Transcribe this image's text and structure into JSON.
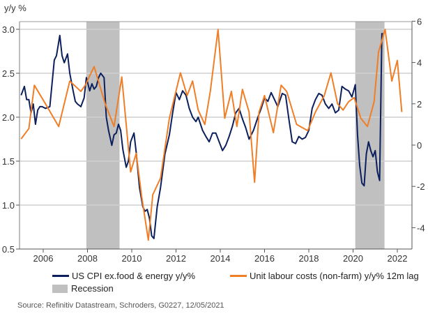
{
  "chart_data": {
    "type": "line",
    "title": "",
    "left_axis_label": "y/y %",
    "xlabel": "",
    "x_range": [
      2005.0,
      2022.35
    ],
    "x_ticks": [
      2006,
      2008,
      2010,
      2012,
      2014,
      2016,
      2018,
      2020,
      2022
    ],
    "x_tick_labels": [
      "2006",
      "2008",
      "2010",
      "2012",
      "2014",
      "2016",
      "2018",
      "2020",
      "2022"
    ],
    "left_ylim": [
      0.5,
      3.1
    ],
    "left_ticks": [
      0.5,
      1.0,
      1.5,
      2.0,
      2.5,
      3.0
    ],
    "left_tick_labels": [
      "0.5",
      "1.0",
      "1.5",
      "2.0",
      "2.5",
      "3.0"
    ],
    "right_ylim": [
      -5,
      6
    ],
    "right_ticks": [
      -4,
      -2,
      0,
      2,
      4,
      6
    ],
    "right_tick_labels": [
      "-4",
      "-2",
      "0",
      "2",
      "4",
      "6"
    ],
    "grid": "horizontal",
    "legend_position": "bottom",
    "recessions": [
      {
        "start": 2007.95,
        "end": 2009.45
      },
      {
        "start": 2020.1,
        "end": 2021.42
      }
    ],
    "series": [
      {
        "name": "US CPI ex.food & energy y/y%",
        "axis": "left",
        "color": "#0b1f5c",
        "x": [
          2005.0,
          2005.15,
          2005.25,
          2005.35,
          2005.45,
          2005.55,
          2005.65,
          2005.75,
          2005.85,
          2005.95,
          2006.1,
          2006.3,
          2006.5,
          2006.6,
          2006.75,
          2006.85,
          2006.95,
          2007.1,
          2007.2,
          2007.35,
          2007.45,
          2007.55,
          2007.7,
          2007.85,
          2007.95,
          2008.1,
          2008.2,
          2008.3,
          2008.4,
          2008.5,
          2008.6,
          2008.75,
          2008.85,
          2008.95,
          2009.1,
          2009.2,
          2009.3,
          2009.4,
          2009.5,
          2009.6,
          2009.75,
          2009.85,
          2009.95,
          2010.1,
          2010.2,
          2010.35,
          2010.5,
          2010.6,
          2010.7,
          2010.8,
          2010.9,
          2011.0,
          2011.15,
          2011.3,
          2011.5,
          2011.7,
          2011.85,
          2012.0,
          2012.15,
          2012.3,
          2012.45,
          2012.6,
          2012.75,
          2012.9,
          2013.0,
          2013.2,
          2013.35,
          2013.5,
          2013.65,
          2013.8,
          2013.95,
          2014.1,
          2014.25,
          2014.4,
          2014.55,
          2014.7,
          2014.85,
          2015.0,
          2015.15,
          2015.3,
          2015.5,
          2015.7,
          2015.85,
          2016.0,
          2016.15,
          2016.3,
          2016.45,
          2016.6,
          2016.8,
          2016.95,
          2017.1,
          2017.25,
          2017.4,
          2017.55,
          2017.7,
          2017.85,
          2018.0,
          2018.15,
          2018.3,
          2018.45,
          2018.6,
          2018.75,
          2018.9,
          2019.05,
          2019.2,
          2019.35,
          2019.5,
          2019.65,
          2019.8,
          2019.95,
          2020.1,
          2020.2,
          2020.3,
          2020.4,
          2020.5,
          2020.6,
          2020.7,
          2020.8,
          2020.9,
          2021.0,
          2021.1,
          2021.2,
          2021.3,
          2021.35
        ],
        "values": [
          2.25,
          2.35,
          2.2,
          2.2,
          2.05,
          2.15,
          1.92,
          2.08,
          2.12,
          2.12,
          2.1,
          2.12,
          2.65,
          2.7,
          2.93,
          2.7,
          2.62,
          2.72,
          2.5,
          2.3,
          2.18,
          2.15,
          2.12,
          2.22,
          2.45,
          2.3,
          2.38,
          2.32,
          2.35,
          2.45,
          2.5,
          2.45,
          2.0,
          1.85,
          1.68,
          1.8,
          1.82,
          1.92,
          1.85,
          1.63,
          1.43,
          1.5,
          1.72,
          1.82,
          1.6,
          1.2,
          0.98,
          0.93,
          0.95,
          0.85,
          0.65,
          0.62,
          0.98,
          1.2,
          1.58,
          1.8,
          2.05,
          2.28,
          2.2,
          2.3,
          2.25,
          2.1,
          2.0,
          1.95,
          2.0,
          1.85,
          1.78,
          1.72,
          1.82,
          1.82,
          1.72,
          1.62,
          1.68,
          1.78,
          1.9,
          2.05,
          2.1,
          1.98,
          1.88,
          1.75,
          1.85,
          2.0,
          2.1,
          2.22,
          2.18,
          2.28,
          2.2,
          2.12,
          2.27,
          2.25,
          1.98,
          1.72,
          1.7,
          1.78,
          1.75,
          1.77,
          1.85,
          2.1,
          2.2,
          2.27,
          2.25,
          2.15,
          2.1,
          2.15,
          2.05,
          2.08,
          2.35,
          2.32,
          2.3,
          2.23,
          2.37,
          1.8,
          1.45,
          1.25,
          1.22,
          1.58,
          1.72,
          1.62,
          1.55,
          1.62,
          1.38,
          1.28,
          2.95,
          2.95
        ]
      },
      {
        "name": "Unit labour costs (non-farm) y/y% 12m lag",
        "axis": "right",
        "color": "#f07e26",
        "x": [
          2005.0,
          2005.35,
          2005.6,
          2006.1,
          2006.7,
          2007.2,
          2007.7,
          2007.9,
          2008.3,
          2008.8,
          2009.2,
          2009.55,
          2009.95,
          2010.2,
          2010.45,
          2010.75,
          2010.95,
          2011.3,
          2011.7,
          2011.95,
          2012.2,
          2012.5,
          2012.75,
          2013.0,
          2013.3,
          2013.55,
          2013.9,
          2014.2,
          2014.5,
          2014.75,
          2015.0,
          2015.3,
          2015.55,
          2015.75,
          2016.0,
          2016.4,
          2016.75,
          2017.0,
          2017.45,
          2017.95,
          2018.3,
          2018.7,
          2019.0,
          2019.3,
          2019.55,
          2019.8,
          2020.05,
          2020.35,
          2020.65,
          2020.95,
          2021.15,
          2021.45,
          2021.75,
          2022.0,
          2022.2
        ],
        "values": [
          0.3,
          0.8,
          2.9,
          2.0,
          0.9,
          3.1,
          2.6,
          2.9,
          3.8,
          2.0,
          0.9,
          3.3,
          -1.3,
          -0.4,
          -2.5,
          -4.6,
          -2.4,
          -1.6,
          1.3,
          2.4,
          3.5,
          2.4,
          3.1,
          1.7,
          1.0,
          2.6,
          5.6,
          1.3,
          2.6,
          0.9,
          2.7,
          1.6,
          -1.8,
          1.6,
          2.4,
          0.6,
          2.9,
          2.6,
          1.0,
          0.7,
          1.6,
          2.4,
          3.5,
          2.0,
          1.7,
          2.1,
          2.3,
          1.3,
          0.9,
          2.1,
          4.5,
          5.6,
          3.1,
          4.1,
          1.6
        ]
      },
      {
        "name": "Recession",
        "type": "area",
        "color": "#c0c0c0"
      }
    ],
    "legend": [
      {
        "label": "US CPI ex.food & energy y/y%",
        "color": "#0b1f5c",
        "kind": "line"
      },
      {
        "label": "Unit labour costs (non-farm) y/y% 12m lag",
        "color": "#f07e26",
        "kind": "line"
      },
      {
        "label": "Recession",
        "color": "#c0c0c0",
        "kind": "box"
      }
    ],
    "source": "Source: Refinitiv Datastream, Schroders, G0227, 12/05/2021"
  }
}
